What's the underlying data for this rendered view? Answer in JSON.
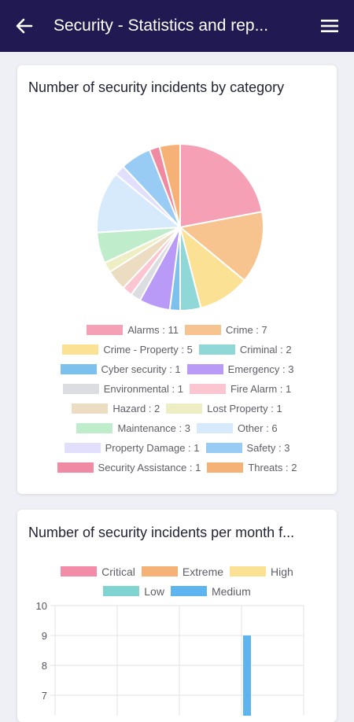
{
  "appbar": {
    "title": "Security - Statistics and rep...",
    "back_icon": "back-arrow-icon",
    "menu_icon": "hamburger-menu-icon"
  },
  "pie_card": {
    "title": "Number of security incidents by category",
    "legend": [
      [
        "Alarms : 11",
        "Crime : 7"
      ],
      [
        "Crime - Property : 5",
        "Criminal : 2"
      ],
      [
        "Cyber security : 1",
        "Emergency : 3"
      ],
      [
        "Environmental : 1",
        "Fire Alarm : 1"
      ],
      [
        "Hazard : 2",
        "Lost Property : 1"
      ],
      [
        "Maintenance : 3",
        "Other : 6"
      ],
      [
        "Property Damage : 1",
        "Safety : 3"
      ],
      [
        "Security Assistance : 1",
        "Threats : 2"
      ]
    ]
  },
  "bar_card": {
    "title": "Number of security incidents per month f...",
    "legend": [
      [
        "Critical",
        "Extreme",
        "High"
      ],
      [
        "Low",
        "Medium"
      ]
    ]
  },
  "chart_data": [
    {
      "type": "pie",
      "title": "Number of security incidents by category",
      "labels": [
        "Alarms",
        "Crime",
        "Crime - Property",
        "Criminal",
        "Cyber security",
        "Emergency",
        "Environmental",
        "Fire Alarm",
        "Hazard",
        "Lost Property",
        "Maintenance",
        "Other",
        "Property Damage",
        "Safety",
        "Security Assistance",
        "Threats"
      ],
      "values": [
        11,
        7,
        5,
        2,
        1,
        3,
        1,
        1,
        2,
        1,
        3,
        6,
        1,
        3,
        1,
        2
      ],
      "colors": [
        "#f5a0b5",
        "#f7c48f",
        "#fbe193",
        "#8fd8d7",
        "#7cc0ee",
        "#b99af7",
        "#dcdde1",
        "#fbc6d2",
        "#ecdcc1",
        "#eeeec5",
        "#bfeccb",
        "#d6eafc",
        "#e2dffd",
        "#99ccf4",
        "#f08aa3",
        "#f6b176"
      ],
      "legend_placement": "bottom"
    },
    {
      "type": "bar",
      "title": "Number of security incidents per month f...",
      "series": [
        {
          "name": "Critical",
          "color": "#f28ca8",
          "values": []
        },
        {
          "name": "Extreme",
          "color": "#f6b176",
          "values": []
        },
        {
          "name": "High",
          "color": "#fbe193",
          "values": []
        },
        {
          "name": "Low",
          "color": "#7fd3d0",
          "values": []
        },
        {
          "name": "Medium",
          "color": "#5eb4ee",
          "values": [
            9
          ]
        }
      ],
      "yticks": [
        10,
        9,
        8,
        7
      ],
      "ylim": [
        6.5,
        10
      ],
      "grid": true,
      "legend_placement": "top"
    }
  ]
}
